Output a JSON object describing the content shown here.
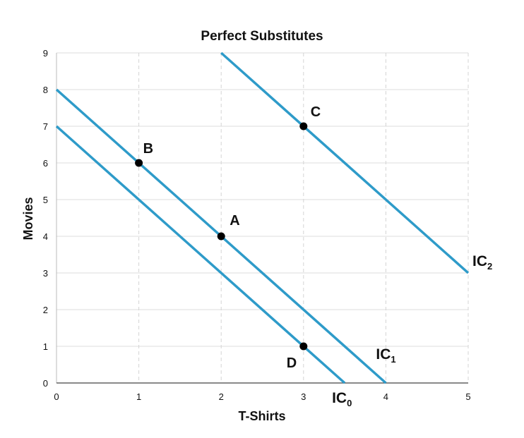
{
  "chart_data": {
    "type": "line",
    "title": "Perfect Substitutes",
    "xlabel": "T-Shirts",
    "ylabel": "Movies",
    "xlim": [
      0,
      5
    ],
    "ylim": [
      0,
      9
    ],
    "xticks": [
      0,
      1,
      2,
      3,
      4,
      5
    ],
    "yticks": [
      0,
      1,
      2,
      3,
      4,
      5,
      6,
      7,
      8,
      9
    ],
    "grid": "vertical-dashed, horizontal-solid",
    "line_color": "#2e9bc9",
    "series": [
      {
        "name": "IC",
        "sub": "0",
        "x": [
          0,
          3.5
        ],
        "y": [
          7,
          0
        ]
      },
      {
        "name": "IC",
        "sub": "1",
        "x": [
          0,
          4
        ],
        "y": [
          8,
          0
        ]
      },
      {
        "name": "IC",
        "sub": "2",
        "x": [
          2,
          5
        ],
        "y": [
          9,
          3
        ]
      }
    ],
    "points": [
      {
        "label": "A",
        "x": 2,
        "y": 4
      },
      {
        "label": "B",
        "x": 1,
        "y": 6
      },
      {
        "label": "C",
        "x": 3,
        "y": 7
      },
      {
        "label": "D",
        "x": 3,
        "y": 1
      }
    ]
  }
}
